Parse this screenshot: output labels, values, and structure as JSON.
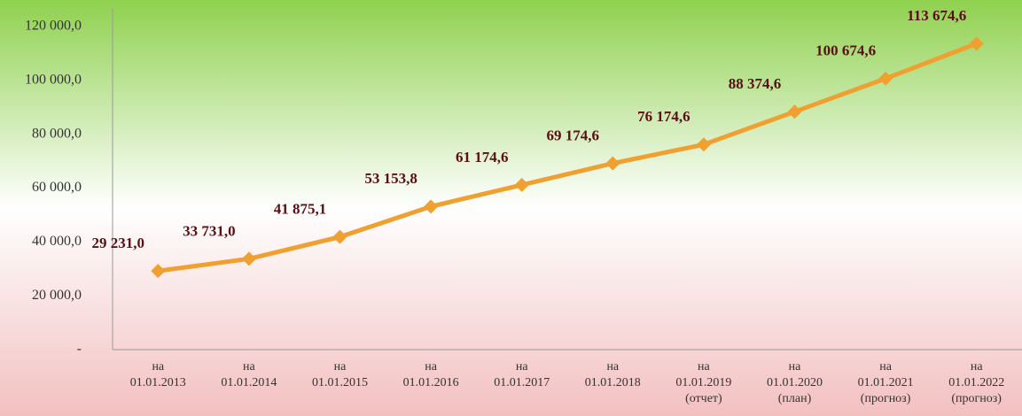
{
  "chart_data": {
    "type": "line",
    "categories": [
      [
        "на",
        "01.01.2013"
      ],
      [
        "на",
        "01.01.2014"
      ],
      [
        "на",
        "01.01.2015"
      ],
      [
        "на",
        "01.01.2016"
      ],
      [
        "на",
        "01.01.2017"
      ],
      [
        "на",
        "01.01.2018"
      ],
      [
        "на",
        "01.01.2019",
        "(отчет)"
      ],
      [
        "на",
        "01.01.2020",
        "(план)"
      ],
      [
        "на",
        "01.01.2021",
        "(прогноз)"
      ],
      [
        "на",
        "01.01.2022",
        "(прогноз)"
      ]
    ],
    "values": [
      29231.0,
      33731.0,
      41875.1,
      53153.8,
      61174.6,
      69174.6,
      76174.6,
      88374.6,
      100674.6,
      113674.6
    ],
    "value_labels": [
      "29 231,0",
      "33 731,0",
      "41 875,1",
      "53 153,8",
      "61 174,6",
      "69 174,6",
      "76 174,6",
      "88 374,6",
      "100 674,6",
      "113 674,6"
    ],
    "color": "#f0a030",
    "ylim": [
      0,
      120000
    ],
    "yticks": [
      {
        "value": 0,
        "label": "-"
      },
      {
        "value": 20000,
        "label": "20 000,0"
      },
      {
        "value": 40000,
        "label": "40 000,0"
      },
      {
        "value": 60000,
        "label": "60 000,0"
      },
      {
        "value": 80000,
        "label": "80 000,0"
      },
      {
        "value": 100000,
        "label": "100 000,0"
      },
      {
        "value": 120000,
        "label": "120 000,0"
      }
    ],
    "grid": false
  }
}
